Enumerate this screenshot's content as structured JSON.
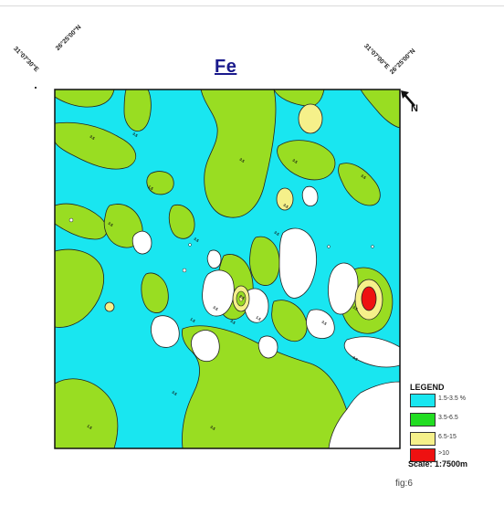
{
  "title": "Fe",
  "figure_label": "fig:6",
  "coordinates": {
    "top_left_lon": "31°07'30\"E",
    "top_left_lat": "26°25'00\"N",
    "top_right_lon": "31°07'00\"E",
    "top_right_lat": "26°25'00\"N"
  },
  "north_label": "N",
  "legend": {
    "title": "LEGEND",
    "items": [
      {
        "label": "1.5-3.5 %",
        "color": "#19e6f0"
      },
      {
        "label": "3.5-6.5",
        "color": "#22dd22"
      },
      {
        "label": "6.5-15",
        "color": "#f5f08a"
      },
      {
        "label": ">10",
        "color": "#ee1111"
      }
    ]
  },
  "scale": "Scale: 1:7500m",
  "map_colors": {
    "water_base": "#19e6f0",
    "zone_green": "#99dd22",
    "zone_yellow": "#f5f08a",
    "zone_red": "#ee1111",
    "zone_white": "#ffffff"
  },
  "contour_labels": [
    "3.5",
    "3.5",
    "3.5",
    "3.5",
    "3.5",
    "3.5",
    "1.5",
    "3.5",
    "3.5",
    "3.5",
    "1.5",
    "3.5",
    "3.5",
    "1.5",
    "3.5",
    "6.5",
    "3.5",
    "3.5",
    "1.5",
    "3.5",
    "3.5"
  ]
}
